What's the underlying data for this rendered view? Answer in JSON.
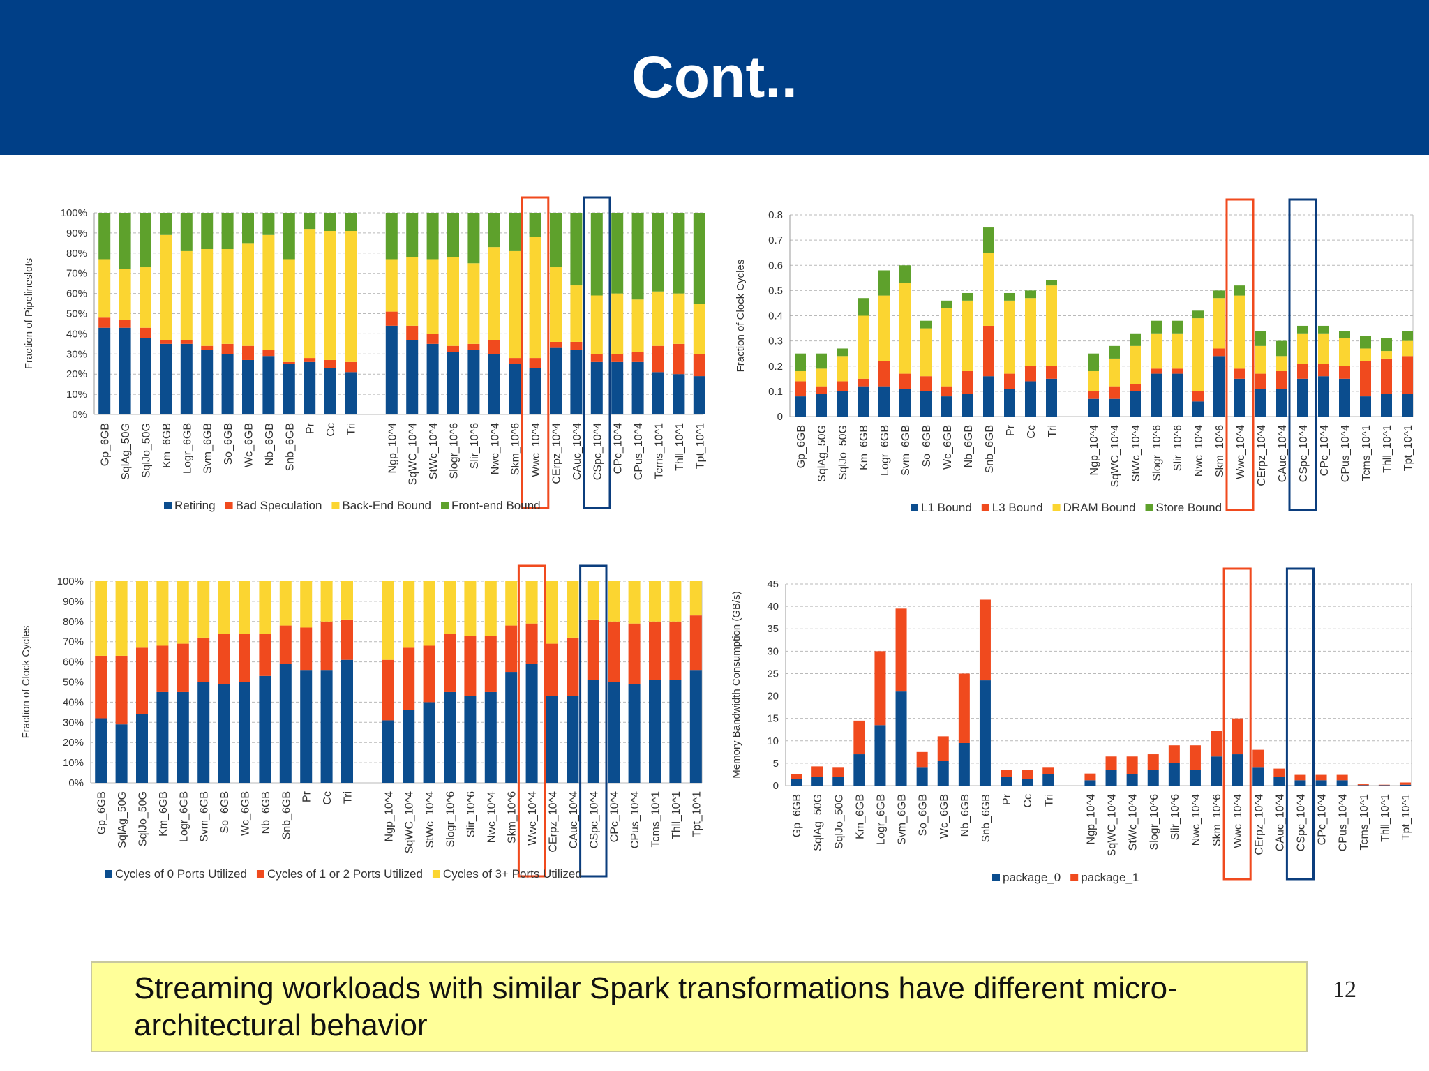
{
  "slide": {
    "title": "Cont..",
    "note": "Streaming workloads with similar Spark transformations have different micro-architectural behavior",
    "page_number": "12"
  },
  "colors": {
    "title_bg": "#003f87",
    "blue": "#0b4d8e",
    "red": "#f04a1e",
    "yellow": "#fbd531",
    "green": "#5ea12c",
    "highlight_red": "#f04a1e",
    "highlight_blue": "#0b3d7d",
    "note_bg": "#ffff99"
  },
  "chart_data": [
    {
      "type": "bar",
      "stacked": true,
      "ylabel": "Fraction of Pipelineslots",
      "yticks": [
        "0%",
        "10%",
        "20%",
        "30%",
        "40%",
        "50%",
        "60%",
        "70%",
        "80%",
        "90%",
        "100%"
      ],
      "ylim": [
        0,
        100
      ],
      "grid": true,
      "legend_position": "bottom",
      "categories": [
        "Gp_6GB",
        "SqlAg_50G",
        "SqlJo_50G",
        "Km_6GB",
        "Logr_6GB",
        "Svm_6GB",
        "So_6GB",
        "Wc_6GB",
        "Nb_6GB",
        "Snb_6GB",
        "Pr",
        "Cc",
        "Tri",
        "",
        "Ngp_10^4",
        "SqWC_10^4",
        "StWc_10^4",
        "Slogr_10^6",
        "Slir_10^6",
        "Nwc_10^4",
        "Skm_10^6",
        "Wwc_10^4",
        "CErpz_10^4",
        "CAuc_10^4",
        "CSpc_10^4",
        "CPc_10^4",
        "CPus_10^4",
        "Tcms_10^1",
        "Thll_10^1",
        "Tpt_10^1"
      ],
      "highlighted": [
        "Wwc_10^4",
        "CSpc_10^4"
      ],
      "series": [
        {
          "name": "Retiring",
          "color": "#0b4d8e",
          "values": [
            43,
            43,
            38,
            35,
            35,
            32,
            30,
            27,
            29,
            25,
            26,
            23,
            21,
            null,
            44,
            37,
            35,
            31,
            32,
            30,
            25,
            23,
            33,
            32,
            26,
            26,
            26,
            21,
            20,
            19
          ]
        },
        {
          "name": "Bad Speculation",
          "color": "#f04a1e",
          "values": [
            5,
            4,
            5,
            2,
            2,
            2,
            5,
            7,
            3,
            1,
            2,
            4,
            5,
            null,
            7,
            7,
            5,
            3,
            3,
            7,
            3,
            5,
            3,
            4,
            4,
            4,
            5,
            13,
            15,
            11
          ]
        },
        {
          "name": "Back-End Bound",
          "color": "#fbd531",
          "values": [
            29,
            25,
            30,
            52,
            44,
            48,
            47,
            51,
            57,
            51,
            64,
            64,
            65,
            null,
            26,
            34,
            37,
            44,
            40,
            46,
            53,
            60,
            37,
            28,
            29,
            30,
            26,
            27,
            25,
            25
          ]
        },
        {
          "name": "Front-end Bound",
          "color": "#5ea12c",
          "values": [
            23,
            28,
            27,
            11,
            19,
            18,
            18,
            15,
            11,
            23,
            8,
            9,
            9,
            null,
            23,
            22,
            23,
            22,
            25,
            17,
            19,
            12,
            27,
            36,
            41,
            40,
            43,
            39,
            40,
            45
          ]
        }
      ]
    },
    {
      "type": "bar",
      "stacked": true,
      "ylabel": "Fraction of Clock Cycles",
      "yticks": [
        "0",
        "0.1",
        "0.2",
        "0.3",
        "0.4",
        "0.5",
        "0.6",
        "0.7",
        "0.8"
      ],
      "ylim": [
        0,
        0.8
      ],
      "grid": true,
      "legend_position": "bottom",
      "categories": [
        "Gp_6GB",
        "SqlAg_50G",
        "SqlJo_50G",
        "Km_6GB",
        "Logr_6GB",
        "Svm_6GB",
        "So_6GB",
        "Wc_6GB",
        "Nb_6GB",
        "Snb_6GB",
        "Pr",
        "Cc",
        "Tri",
        "",
        "Ngp_10^4",
        "SqWC_10^4",
        "StWc_10^4",
        "Slogr_10^6",
        "Slir_10^6",
        "Nwc_10^4",
        "Skm_10^6",
        "Wwc_10^4",
        "CErpz_10^4",
        "CAuc_10^4",
        "CSpc_10^4",
        "CPc_10^4",
        "CPus_10^4",
        "Tcms_10^1",
        "Thll_10^1",
        "Tpt_10^1"
      ],
      "highlighted": [
        "Wwc_10^4",
        "CSpc_10^4"
      ],
      "series": [
        {
          "name": "L1 Bound",
          "color": "#0b4d8e",
          "values": [
            0.08,
            0.09,
            0.1,
            0.12,
            0.12,
            0.11,
            0.1,
            0.08,
            0.09,
            0.16,
            0.11,
            0.14,
            0.15,
            null,
            0.07,
            0.07,
            0.1,
            0.17,
            0.17,
            0.06,
            0.24,
            0.15,
            0.11,
            0.11,
            0.15,
            0.16,
            0.15,
            0.08,
            0.09,
            0.09
          ]
        },
        {
          "name": "L3 Bound",
          "color": "#f04a1e",
          "values": [
            0.06,
            0.03,
            0.04,
            0.03,
            0.1,
            0.06,
            0.06,
            0.04,
            0.09,
            0.2,
            0.06,
            0.06,
            0.05,
            null,
            0.03,
            0.05,
            0.03,
            0.02,
            0.02,
            0.04,
            0.03,
            0.04,
            0.06,
            0.07,
            0.06,
            0.05,
            0.05,
            0.14,
            0.14,
            0.15
          ]
        },
        {
          "name": "DRAM Bound",
          "color": "#fbd531",
          "values": [
            0.04,
            0.07,
            0.1,
            0.25,
            0.26,
            0.36,
            0.19,
            0.31,
            0.28,
            0.29,
            0.29,
            0.27,
            0.32,
            null,
            0.08,
            0.11,
            0.15,
            0.14,
            0.14,
            0.29,
            0.2,
            0.29,
            0.11,
            0.06,
            0.12,
            0.12,
            0.11,
            0.05,
            0.03,
            0.06
          ]
        },
        {
          "name": "Store Bound",
          "color": "#5ea12c",
          "values": [
            0.07,
            0.06,
            0.03,
            0.07,
            0.1,
            0.07,
            0.03,
            0.03,
            0.03,
            0.1,
            0.03,
            0.03,
            0.02,
            null,
            0.07,
            0.05,
            0.05,
            0.05,
            0.05,
            0.03,
            0.03,
            0.04,
            0.06,
            0.06,
            0.03,
            0.03,
            0.03,
            0.05,
            0.05,
            0.04
          ]
        }
      ]
    },
    {
      "type": "bar",
      "stacked": true,
      "ylabel": "Fraction of Clock Cycles",
      "yticks": [
        "0%",
        "10%",
        "20%",
        "30%",
        "40%",
        "50%",
        "60%",
        "70%",
        "80%",
        "90%",
        "100%"
      ],
      "ylim": [
        0,
        100
      ],
      "grid": true,
      "legend_position": "bottom",
      "categories": [
        "Gp_6GB",
        "SqlAg_50G",
        "SqlJo_50G",
        "Km_6GB",
        "Logr_6GB",
        "Svm_6GB",
        "So_6GB",
        "Wc_6GB",
        "Nb_6GB",
        "Snb_6GB",
        "Pr",
        "Cc",
        "Tri",
        "",
        "Ngp_10^4",
        "SqWC_10^4",
        "StWc_10^4",
        "Slogr_10^6",
        "Slir_10^6",
        "Nwc_10^4",
        "Skm_10^6",
        "Wwc_10^4",
        "CErpz_10^4",
        "CAuc_10^4",
        "CSpc_10^4",
        "CPc_10^4",
        "CPus_10^4",
        "Tcms_10^1",
        "Thll_10^1",
        "Tpt_10^1"
      ],
      "highlighted": [
        "Wwc_10^4",
        "CSpc_10^4"
      ],
      "series": [
        {
          "name": "Cycles of 0 Ports Utilized",
          "color": "#0b4d8e",
          "values": [
            32,
            29,
            34,
            45,
            45,
            50,
            49,
            50,
            53,
            59,
            56,
            56,
            61,
            null,
            31,
            36,
            40,
            45,
            43,
            45,
            55,
            59,
            43,
            43,
            51,
            50,
            49,
            51,
            51,
            56
          ]
        },
        {
          "name": "Cycles of 1 or 2 Ports Utilized",
          "color": "#f04a1e",
          "values": [
            31,
            34,
            33,
            23,
            24,
            22,
            25,
            24,
            21,
            19,
            21,
            24,
            20,
            null,
            30,
            31,
            28,
            29,
            30,
            28,
            23,
            20,
            26,
            29,
            30,
            30,
            30,
            29,
            29,
            27
          ]
        },
        {
          "name": "Cycles of 3+ Ports Utilized",
          "color": "#fbd531",
          "values": [
            37,
            37,
            33,
            32,
            31,
            28,
            26,
            26,
            26,
            22,
            23,
            20,
            19,
            null,
            39,
            33,
            32,
            26,
            27,
            27,
            22,
            21,
            31,
            28,
            19,
            20,
            21,
            20,
            20,
            17
          ]
        }
      ]
    },
    {
      "type": "bar",
      "stacked": true,
      "ylabel": "Memory Bandwidth Consumption (GB/s)",
      "yticks": [
        "0",
        "5",
        "10",
        "15",
        "20",
        "25",
        "30",
        "35",
        "40",
        "45"
      ],
      "ylim": [
        0,
        45
      ],
      "grid": true,
      "legend_position": "bottom",
      "categories": [
        "Gp_6GB",
        "SqlAg_50G",
        "SqlJo_50G",
        "Km_6GB",
        "Logr_6GB",
        "Svm_6GB",
        "So_6GB",
        "Wc_6GB",
        "Nb_6GB",
        "Snb_6GB",
        "Pr",
        "Cc",
        "Tri",
        "",
        "Ngp_10^4",
        "SqWC_10^4",
        "StWc_10^4",
        "Slogr_10^6",
        "Slir_10^6",
        "Nwc_10^4",
        "Skm_10^6",
        "Wwc_10^4",
        "CErpz_10^4",
        "CAuc_10^4",
        "CSpc_10^4",
        "CPc_10^4",
        "CPus_10^4",
        "Tcms_10^1",
        "Thll_10^1",
        "Tpt_10^1"
      ],
      "highlighted": [
        "Wwc_10^4",
        "CSpc_10^4"
      ],
      "series": [
        {
          "name": "package_0",
          "color": "#0b4d8e",
          "values": [
            1.5,
            2,
            2,
            7,
            13.5,
            21,
            4,
            5.5,
            9.5,
            23.5,
            2,
            1.5,
            2.5,
            null,
            1.2,
            3.5,
            2.5,
            3.5,
            5,
            3.5,
            6.5,
            7,
            4,
            2,
            1.2,
            1.2,
            1.2,
            0.1,
            0.1,
            0.2
          ]
        },
        {
          "name": "package_1",
          "color": "#f04a1e",
          "values": [
            1,
            2.3,
            2,
            7.5,
            16.5,
            18.5,
            3.5,
            5.5,
            15.5,
            18,
            1.5,
            2,
            1.5,
            null,
            1.5,
            3,
            4,
            3.5,
            4,
            5.5,
            5.8,
            8,
            4,
            1.8,
            1.2,
            1.2,
            1.2,
            0.2,
            0.1,
            0.5
          ]
        }
      ]
    }
  ]
}
